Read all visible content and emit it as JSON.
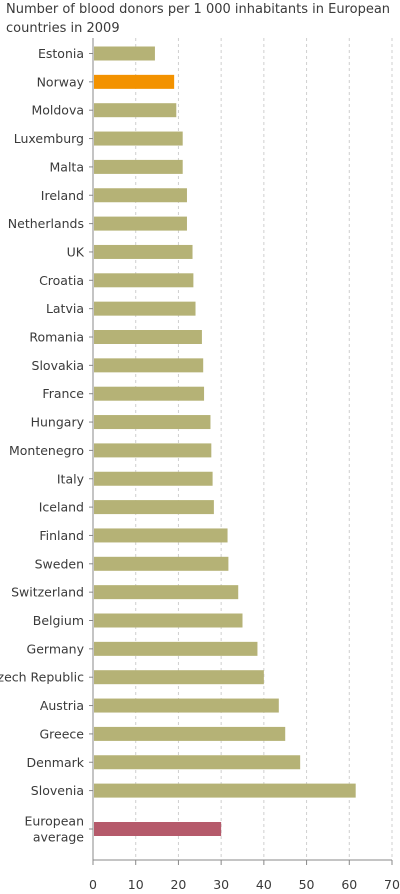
{
  "chart_data": {
    "type": "bar",
    "orientation": "horizontal",
    "title": "Number of blood donors per 1 000 inhabitants in European countries in 2009",
    "xlabel": "",
    "ylabel": "",
    "xlim": [
      0,
      70
    ],
    "x_ticks": [
      0,
      10,
      20,
      30,
      40,
      50,
      60,
      70
    ],
    "grid": "vertical dashed",
    "categories": [
      {
        "label": [
          "Estonia"
        ],
        "value": 14.5
      },
      {
        "label": [
          "Norway"
        ],
        "value": 19.0,
        "highlight": "#f39200"
      },
      {
        "label": [
          "Moldova"
        ],
        "value": 19.5
      },
      {
        "label": [
          "Luxemburg"
        ],
        "value": 21.0
      },
      {
        "label": [
          "Malta"
        ],
        "value": 21.0
      },
      {
        "label": [
          "Ireland"
        ],
        "value": 22.0
      },
      {
        "label": [
          "Netherlands"
        ],
        "value": 22.0
      },
      {
        "label": [
          "UK"
        ],
        "value": 23.3
      },
      {
        "label": [
          "Croatia"
        ],
        "value": 23.5
      },
      {
        "label": [
          "Latvia"
        ],
        "value": 24.0
      },
      {
        "label": [
          "Romania"
        ],
        "value": 25.5
      },
      {
        "label": [
          "Slovakia"
        ],
        "value": 25.8
      },
      {
        "label": [
          "France"
        ],
        "value": 26.0
      },
      {
        "label": [
          "Hungary"
        ],
        "value": 27.5
      },
      {
        "label": [
          "Montenegro"
        ],
        "value": 27.7
      },
      {
        "label": [
          "Italy"
        ],
        "value": 28.0
      },
      {
        "label": [
          "Iceland"
        ],
        "value": 28.3
      },
      {
        "label": [
          "Finland"
        ],
        "value": 31.5
      },
      {
        "label": [
          "Sweden"
        ],
        "value": 31.7
      },
      {
        "label": [
          "Switzerland"
        ],
        "value": 34.0
      },
      {
        "label": [
          "Belgium"
        ],
        "value": 35.0
      },
      {
        "label": [
          "Germany"
        ],
        "value": 38.5
      },
      {
        "label": [
          "Czech Republic"
        ],
        "value": 40.0
      },
      {
        "label": [
          "Austria"
        ],
        "value": 43.5
      },
      {
        "label": [
          "Greece"
        ],
        "value": 45.0
      },
      {
        "label": [
          "Denmark"
        ],
        "value": 48.5
      },
      {
        "label": [
          "Slovenia"
        ],
        "value": 61.5
      },
      {
        "label": [
          "European",
          "average"
        ],
        "value": 30.0,
        "highlight": "#b55a6b"
      }
    ],
    "colors": {
      "bar": "#b5b276",
      "grid": "#cfcfcf",
      "axis": "#888888"
    }
  }
}
